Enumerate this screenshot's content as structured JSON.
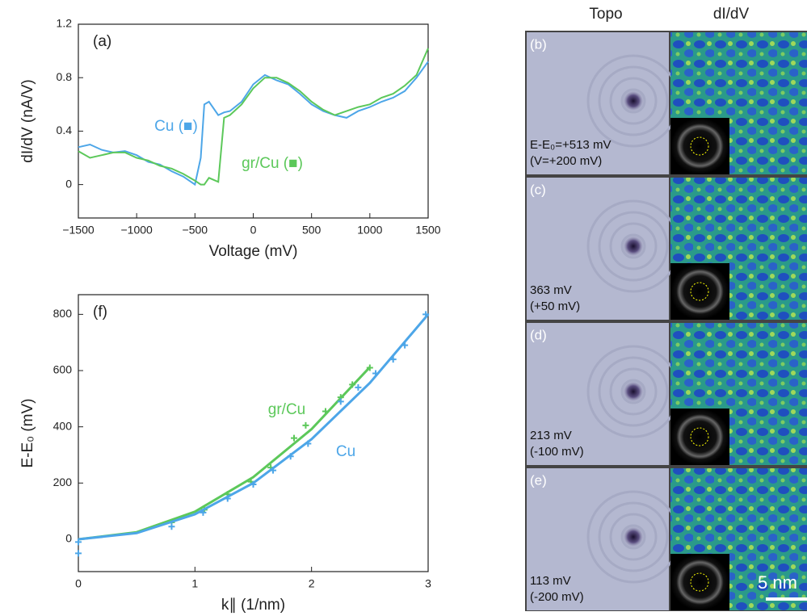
{
  "chart_data": [
    {
      "type": "line",
      "title": "(a)",
      "x_label": "Voltage (mV)",
      "y_label": "dI/dV (nA/V)",
      "x": [
        -1500,
        -1400,
        -1300,
        -1200,
        -1100,
        -1000,
        -900,
        -800,
        -700,
        -600,
        -500,
        -450,
        -420,
        -380,
        -300,
        -250,
        -200,
        -100,
        0,
        100,
        200,
        300,
        400,
        500,
        600,
        700,
        800,
        900,
        1000,
        1100,
        1200,
        1300,
        1400,
        1500
      ],
      "series": [
        {
          "name": "Cu (■)",
          "color": "#4da6e8",
          "values": [
            0.28,
            0.3,
            0.26,
            0.24,
            0.25,
            0.22,
            0.17,
            0.15,
            0.1,
            0.06,
            0.0,
            0.2,
            0.6,
            0.62,
            0.52,
            0.54,
            0.55,
            0.62,
            0.75,
            0.82,
            0.78,
            0.75,
            0.68,
            0.6,
            0.55,
            0.52,
            0.5,
            0.55,
            0.58,
            0.62,
            0.65,
            0.7,
            0.8,
            0.92
          ]
        },
        {
          "name": "gr/Cu (■)",
          "color": "#5cc85a",
          "values": [
            0.25,
            0.2,
            0.22,
            0.24,
            0.24,
            0.2,
            0.18,
            0.14,
            0.12,
            0.08,
            0.03,
            0.0,
            0.0,
            0.05,
            0.02,
            0.5,
            0.52,
            0.6,
            0.72,
            0.8,
            0.8,
            0.76,
            0.7,
            0.62,
            0.56,
            0.52,
            0.55,
            0.58,
            0.6,
            0.65,
            0.68,
            0.74,
            0.82,
            1.02
          ]
        }
      ],
      "xlim": [
        -1500,
        1500
      ],
      "xticks": [
        {
          "value": -1500,
          "label": "−1500"
        },
        {
          "value": -1000,
          "label": "−1000"
        },
        {
          "value": -500,
          "label": "−500"
        },
        0,
        500,
        1000,
        1500
      ],
      "ylim": [
        -0.25,
        1.2
      ],
      "yticks": [
        0,
        0.4,
        0.8,
        1.2
      ]
    },
    {
      "type": "scatter",
      "title": "(f)",
      "x_label": "k∥ (1/nm)",
      "y_label": "E-E₀ (mV)",
      "series": [
        {
          "name": "gr/Cu",
          "color": "#5cc85a",
          "x": [
            0.8,
            1.08,
            1.28,
            1.48,
            1.65,
            1.85,
            1.95,
            2.12,
            2.25,
            2.35,
            2.5
          ],
          "values": [
            60,
            105,
            160,
            205,
            255,
            360,
            405,
            455,
            505,
            550,
            610
          ],
          "fit_x": [
            0,
            0.5,
            1,
            1.5,
            2,
            2.5
          ],
          "fit_values": [
            0,
            25,
            98,
            221,
            392,
            612
          ]
        },
        {
          "name": "Cu",
          "color": "#4da6e8",
          "x": [
            0,
            0,
            0.8,
            1.07,
            1.28,
            1.5,
            1.67,
            1.82,
            1.97,
            2.25,
            2.4,
            2.55,
            2.7,
            2.8,
            2.98
          ],
          "values": [
            -50,
            -10,
            45,
            95,
            145,
            195,
            245,
            295,
            340,
            490,
            540,
            590,
            640,
            690,
            800
          ],
          "fit_x": [
            0,
            0.5,
            1,
            1.5,
            2,
            2.5,
            3
          ],
          "fit_values": [
            0,
            22,
            89,
            200,
            356,
            556,
            800
          ]
        }
      ],
      "xlim": [
        0,
        3
      ],
      "xticks": [
        0,
        1,
        2,
        3
      ],
      "ylim": [
        -115,
        870
      ],
      "yticks": [
        0,
        200,
        400,
        600,
        800
      ]
    }
  ],
  "images": {
    "headers": [
      "Topo",
      "dI/dV"
    ],
    "scale_bar": "5 nm",
    "panels": [
      {
        "label": "(b)",
        "energy": "E-E₀=+513 mV",
        "bias": "(V=+200 mV)"
      },
      {
        "label": "(c)",
        "energy": "363 mV",
        "bias": "(+50 mV)"
      },
      {
        "label": "(d)",
        "energy": "213 mV",
        "bias": "(-100 mV)"
      },
      {
        "label": "(e)",
        "energy": "113 mV",
        "bias": "(-200 mV)"
      }
    ]
  }
}
